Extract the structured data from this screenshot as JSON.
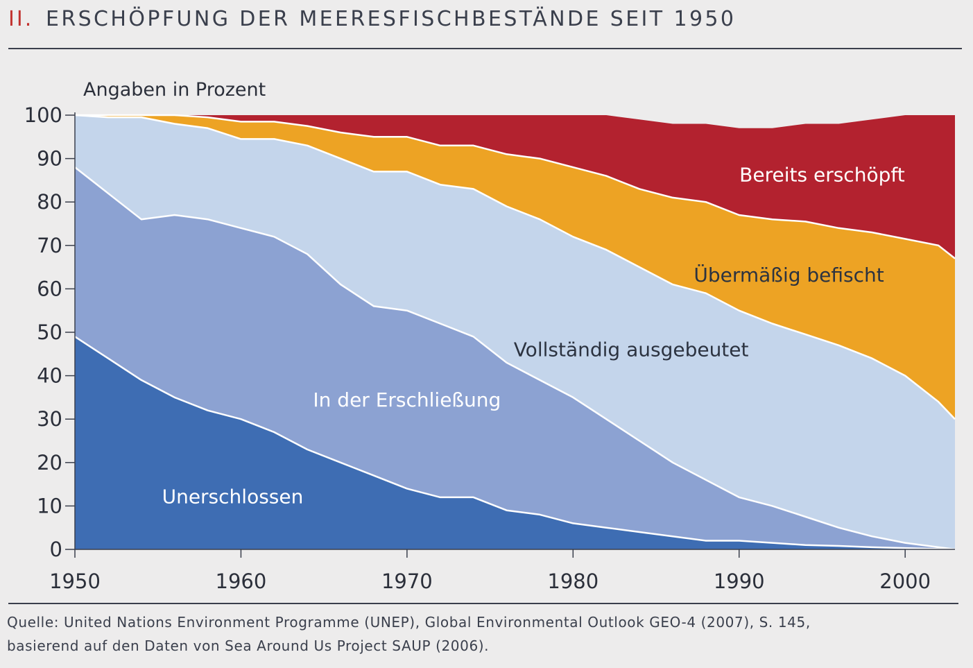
{
  "heading": {
    "number": "II.",
    "title": "ERSCHÖPFUNG DER MEERESFISCHBESTÄNDE SEIT 1950"
  },
  "chart_data": {
    "type": "area",
    "stacked": true,
    "title": "ERSCHÖPFUNG DER MEERESFISCHBESTÄNDE SEIT 1950",
    "ylabel": "Angaben in Prozent",
    "xlabel": "",
    "xlim": [
      1950,
      2003
    ],
    "ylim": [
      0,
      100
    ],
    "x_ticks": [
      1950,
      1960,
      1970,
      1980,
      1990,
      2000
    ],
    "y_ticks": [
      0,
      10,
      20,
      30,
      40,
      50,
      60,
      70,
      80,
      90,
      100
    ],
    "grid": false,
    "x": [
      1950,
      1952,
      1954,
      1956,
      1958,
      1960,
      1962,
      1964,
      1966,
      1968,
      1970,
      1972,
      1974,
      1976,
      1978,
      1980,
      1982,
      1984,
      1986,
      1988,
      1990,
      1992,
      1994,
      1996,
      1998,
      2000,
      2002,
      2003
    ],
    "series": [
      {
        "name": "Unerschlossen",
        "color": "#3e6db3",
        "label_color": "#ffffff",
        "values": [
          49,
          44,
          39,
          35,
          32,
          30,
          27,
          23,
          20,
          17,
          14,
          12,
          12,
          9,
          8,
          6,
          5,
          4,
          3,
          2,
          2,
          1.5,
          1,
          0.8,
          0.5,
          0.3,
          0.1,
          0
        ]
      },
      {
        "name": "In der Erschließung",
        "color": "#8ca2d2",
        "label_color": "#ffffff",
        "values": [
          39,
          38,
          37,
          42,
          44,
          44,
          45,
          45,
          41,
          39,
          41,
          40,
          37,
          34,
          31,
          29,
          25,
          21,
          17,
          14,
          10,
          8.5,
          6.5,
          4.2,
          2.5,
          1.2,
          0.4,
          0
        ]
      },
      {
        "name": "Vollständig ausgebeutet",
        "color": "#c4d5eb",
        "label_color": "#2c3340",
        "values": [
          12,
          17.5,
          23.5,
          21,
          21,
          20.5,
          22.5,
          25,
          29,
          31,
          32,
          32,
          34,
          36,
          37,
          37,
          39,
          40,
          41,
          43,
          43,
          42,
          42,
          42,
          41,
          38.5,
          33.5,
          30
        ]
      },
      {
        "name": "Übermäßig befischt",
        "color": "#eda324",
        "label_color": "#2c3340",
        "values": [
          0,
          0.5,
          0.5,
          2,
          2.5,
          4,
          4,
          4.5,
          6,
          8,
          8,
          9,
          10,
          12,
          14,
          16,
          17,
          18,
          20,
          21,
          22,
          24,
          26,
          27,
          29,
          31.5,
          36,
          37
        ]
      },
      {
        "name": "Bereits erschöpft",
        "color": "#b3222f",
        "label_color": "#ffffff",
        "values": [
          0,
          0,
          0,
          0,
          0.5,
          1.5,
          1.5,
          2.5,
          4,
          5,
          5,
          7,
          7,
          9,
          10,
          12,
          14,
          16,
          17,
          18,
          20,
          21,
          22.5,
          24,
          26,
          28.5,
          30,
          33
        ]
      }
    ]
  },
  "footer": {
    "source_line1": "Quelle: United Nations Environment Programme (UNEP), Global Environmental Outlook GEO-4 (2007), S. 145,",
    "source_line2": "basierend auf den Daten von Sea Around Us Project SAUP (2006)."
  }
}
